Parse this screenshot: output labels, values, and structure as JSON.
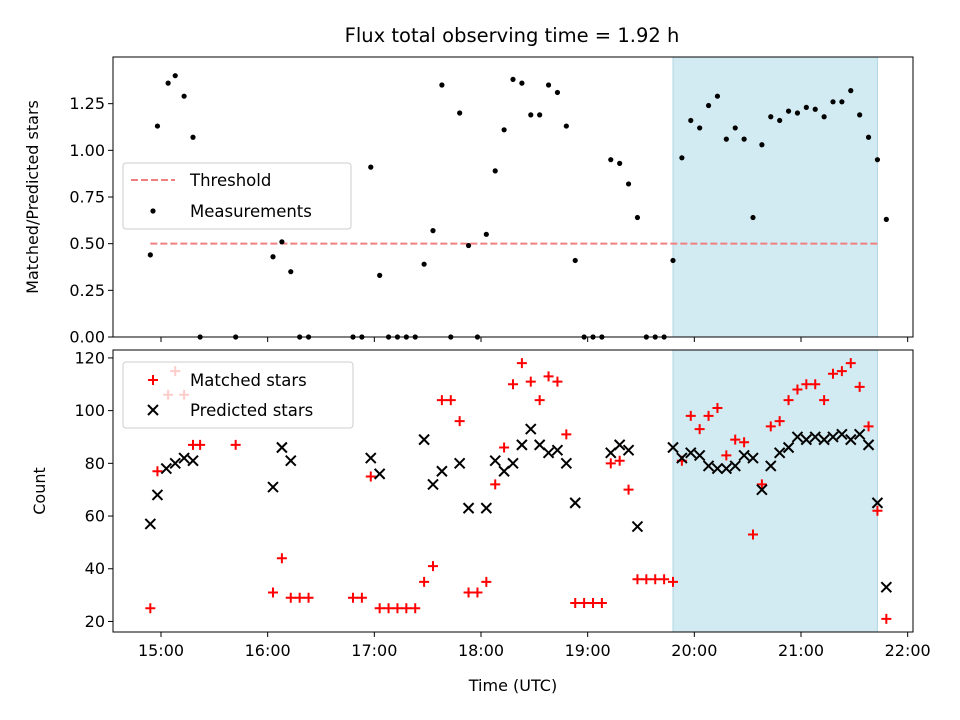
{
  "title": "Flux total observing time = 1.92 h",
  "colors": {
    "threshold": "#f08080",
    "measurement": "#000000",
    "matched": "#ff0000",
    "predicted": "#000000",
    "highlight": "#add8e6"
  },
  "chart_data": [
    {
      "type": "scatter",
      "ylabel": "Matched/Predicted stars",
      "xlim": [
        "14:33",
        "22:03"
      ],
      "ylim": [
        0,
        1.5
      ],
      "yticks": [
        "0.00",
        "0.25",
        "0.50",
        "0.75",
        "1.00",
        "1.25"
      ],
      "yticks_values": [
        0,
        0.25,
        0.5,
        0.75,
        1.0,
        1.25
      ],
      "highlight_span": [
        "19:48",
        "21:43"
      ],
      "threshold": {
        "name": "Threshold",
        "y": 0.5,
        "x": [
          "14:54",
          "21:43"
        ]
      },
      "legend": [
        "Threshold",
        "Measurements"
      ],
      "legend_position": "center-left",
      "series": [
        {
          "name": "Measurements",
          "marker": "dot",
          "points": [
            [
              "14:54",
              0.44
            ],
            [
              "14:58",
              1.13
            ],
            [
              "15:04",
              1.36
            ],
            [
              "15:08",
              1.4
            ],
            [
              "15:13",
              1.29
            ],
            [
              "15:18",
              1.07
            ],
            [
              "15:22",
              0.0
            ],
            [
              "15:42",
              0.0
            ],
            [
              "16:03",
              0.43
            ],
            [
              "16:08",
              0.51
            ],
            [
              "16:13",
              0.35
            ],
            [
              "16:18",
              0.0
            ],
            [
              "16:23",
              0.0
            ],
            [
              "16:48",
              0.0
            ],
            [
              "16:53",
              0.0
            ],
            [
              "16:58",
              0.91
            ],
            [
              "17:03",
              0.33
            ],
            [
              "17:08",
              0.0
            ],
            [
              "17:13",
              0.0
            ],
            [
              "17:18",
              0.0
            ],
            [
              "17:23",
              0.0
            ],
            [
              "17:28",
              0.39
            ],
            [
              "17:33",
              0.57
            ],
            [
              "17:38",
              1.35
            ],
            [
              "17:43",
              0.0
            ],
            [
              "17:48",
              1.2
            ],
            [
              "17:53",
              0.49
            ],
            [
              "17:58",
              0.0
            ],
            [
              "18:03",
              0.55
            ],
            [
              "18:08",
              0.89
            ],
            [
              "18:13",
              1.11
            ],
            [
              "18:18",
              1.38
            ],
            [
              "18:23",
              1.36
            ],
            [
              "18:28",
              1.19
            ],
            [
              "18:33",
              1.19
            ],
            [
              "18:38",
              1.35
            ],
            [
              "18:43",
              1.31
            ],
            [
              "18:48",
              1.13
            ],
            [
              "18:53",
              0.41
            ],
            [
              "18:58",
              0.0
            ],
            [
              "19:03",
              0.0
            ],
            [
              "19:08",
              0.0
            ],
            [
              "19:13",
              0.95
            ],
            [
              "19:18",
              0.93
            ],
            [
              "19:23",
              0.82
            ],
            [
              "19:28",
              0.64
            ],
            [
              "19:33",
              0.0
            ],
            [
              "19:38",
              0.0
            ],
            [
              "19:43",
              0.0
            ],
            [
              "19:48",
              0.41
            ],
            [
              "19:53",
              0.96
            ],
            [
              "19:58",
              1.16
            ],
            [
              "20:03",
              1.12
            ],
            [
              "20:08",
              1.24
            ],
            [
              "20:13",
              1.29
            ],
            [
              "20:18",
              1.06
            ],
            [
              "20:23",
              1.12
            ],
            [
              "20:28",
              1.06
            ],
            [
              "20:33",
              0.64
            ],
            [
              "20:38",
              1.03
            ],
            [
              "20:43",
              1.18
            ],
            [
              "20:48",
              1.16
            ],
            [
              "20:53",
              1.21
            ],
            [
              "20:58",
              1.2
            ],
            [
              "21:03",
              1.23
            ],
            [
              "21:08",
              1.22
            ],
            [
              "21:13",
              1.18
            ],
            [
              "21:18",
              1.26
            ],
            [
              "21:23",
              1.26
            ],
            [
              "21:28",
              1.32
            ],
            [
              "21:33",
              1.19
            ],
            [
              "21:38",
              1.07
            ],
            [
              "21:43",
              0.95
            ],
            [
              "21:48",
              0.63
            ]
          ]
        }
      ]
    },
    {
      "type": "scatter",
      "xlabel": "Time (UTC)",
      "ylabel": "Count",
      "xlim": [
        "14:33",
        "22:03"
      ],
      "ylim": [
        16,
        123
      ],
      "xticks": [
        "15:00",
        "16:00",
        "17:00",
        "18:00",
        "19:00",
        "20:00",
        "21:00",
        "22:00"
      ],
      "yticks": [
        "20",
        "40",
        "60",
        "80",
        "100",
        "120"
      ],
      "yticks_values": [
        20,
        40,
        60,
        80,
        100,
        120
      ],
      "highlight_span": [
        "19:48",
        "21:43"
      ],
      "legend": [
        "Matched stars",
        "Predicted stars"
      ],
      "legend_position": "top-left",
      "series": [
        {
          "name": "Matched stars",
          "marker": "plus",
          "points": [
            [
              "14:54",
              25
            ],
            [
              "14:58",
              77
            ],
            [
              "15:04",
              106
            ],
            [
              "15:08",
              115
            ],
            [
              "15:13",
              106
            ],
            [
              "15:18",
              87
            ],
            [
              "15:22",
              87
            ],
            [
              "15:42",
              87
            ],
            [
              "16:03",
              31
            ],
            [
              "16:08",
              44
            ],
            [
              "16:13",
              29
            ],
            [
              "16:18",
              29
            ],
            [
              "16:23",
              29
            ],
            [
              "16:48",
              29
            ],
            [
              "16:53",
              29
            ],
            [
              "16:58",
              75
            ],
            [
              "17:03",
              25
            ],
            [
              "17:08",
              25
            ],
            [
              "17:13",
              25
            ],
            [
              "17:18",
              25
            ],
            [
              "17:23",
              25
            ],
            [
              "17:28",
              35
            ],
            [
              "17:33",
              41
            ],
            [
              "17:38",
              104
            ],
            [
              "17:43",
              104
            ],
            [
              "17:48",
              96
            ],
            [
              "17:53",
              31
            ],
            [
              "17:58",
              31
            ],
            [
              "18:03",
              35
            ],
            [
              "18:08",
              72
            ],
            [
              "18:13",
              86
            ],
            [
              "18:18",
              110
            ],
            [
              "18:23",
              118
            ],
            [
              "18:28",
              111
            ],
            [
              "18:33",
              104
            ],
            [
              "18:38",
              113
            ],
            [
              "18:43",
              111
            ],
            [
              "18:48",
              91
            ],
            [
              "18:53",
              27
            ],
            [
              "18:58",
              27
            ],
            [
              "19:03",
              27
            ],
            [
              "19:08",
              27
            ],
            [
              "19:13",
              80
            ],
            [
              "19:18",
              81
            ],
            [
              "19:23",
              70
            ],
            [
              "19:28",
              36
            ],
            [
              "19:33",
              36
            ],
            [
              "19:38",
              36
            ],
            [
              "19:43",
              36
            ],
            [
              "19:48",
              35
            ],
            [
              "19:53",
              81
            ],
            [
              "19:58",
              98
            ],
            [
              "20:03",
              93
            ],
            [
              "20:08",
              98
            ],
            [
              "20:13",
              101
            ],
            [
              "20:18",
              83
            ],
            [
              "20:23",
              89
            ],
            [
              "20:28",
              88
            ],
            [
              "20:33",
              53
            ],
            [
              "20:38",
              72
            ],
            [
              "20:43",
              94
            ],
            [
              "20:48",
              96
            ],
            [
              "20:53",
              104
            ],
            [
              "20:58",
              108
            ],
            [
              "21:03",
              110
            ],
            [
              "21:08",
              110
            ],
            [
              "21:13",
              104
            ],
            [
              "21:18",
              114
            ],
            [
              "21:23",
              115
            ],
            [
              "21:28",
              118
            ],
            [
              "21:33",
              109
            ],
            [
              "21:38",
              94
            ],
            [
              "21:43",
              62
            ],
            [
              "21:48",
              21
            ]
          ]
        },
        {
          "name": "Predicted stars",
          "marker": "x",
          "points": [
            [
              "14:54",
              57
            ],
            [
              "14:58",
              68
            ],
            [
              "15:03",
              78
            ],
            [
              "15:08",
              80
            ],
            [
              "15:13",
              82
            ],
            [
              "15:18",
              81
            ],
            [
              "16:03",
              71
            ],
            [
              "16:08",
              86
            ],
            [
              "16:13",
              81
            ],
            [
              "16:58",
              82
            ],
            [
              "17:03",
              76
            ],
            [
              "17:28",
              89
            ],
            [
              "17:33",
              72
            ],
            [
              "17:38",
              77
            ],
            [
              "17:48",
              80
            ],
            [
              "17:53",
              63
            ],
            [
              "18:03",
              63
            ],
            [
              "18:08",
              81
            ],
            [
              "18:13",
              77
            ],
            [
              "18:18",
              80
            ],
            [
              "18:23",
              87
            ],
            [
              "18:28",
              93
            ],
            [
              "18:33",
              87
            ],
            [
              "18:38",
              84
            ],
            [
              "18:43",
              85
            ],
            [
              "18:48",
              80
            ],
            [
              "18:53",
              65
            ],
            [
              "19:13",
              84
            ],
            [
              "19:18",
              87
            ],
            [
              "19:23",
              85
            ],
            [
              "19:28",
              56
            ],
            [
              "19:48",
              86
            ],
            [
              "19:53",
              82
            ],
            [
              "19:58",
              84
            ],
            [
              "20:03",
              83
            ],
            [
              "20:08",
              79
            ],
            [
              "20:13",
              78
            ],
            [
              "20:18",
              78
            ],
            [
              "20:23",
              79
            ],
            [
              "20:28",
              83
            ],
            [
              "20:33",
              82
            ],
            [
              "20:38",
              70
            ],
            [
              "20:43",
              79
            ],
            [
              "20:48",
              84
            ],
            [
              "20:53",
              86
            ],
            [
              "20:58",
              90
            ],
            [
              "21:03",
              89
            ],
            [
              "21:08",
              90
            ],
            [
              "21:13",
              89
            ],
            [
              "21:18",
              90
            ],
            [
              "21:23",
              91
            ],
            [
              "21:28",
              89
            ],
            [
              "21:33",
              91
            ],
            [
              "21:38",
              87
            ],
            [
              "21:43",
              65
            ],
            [
              "21:48",
              33
            ]
          ]
        }
      ]
    }
  ]
}
